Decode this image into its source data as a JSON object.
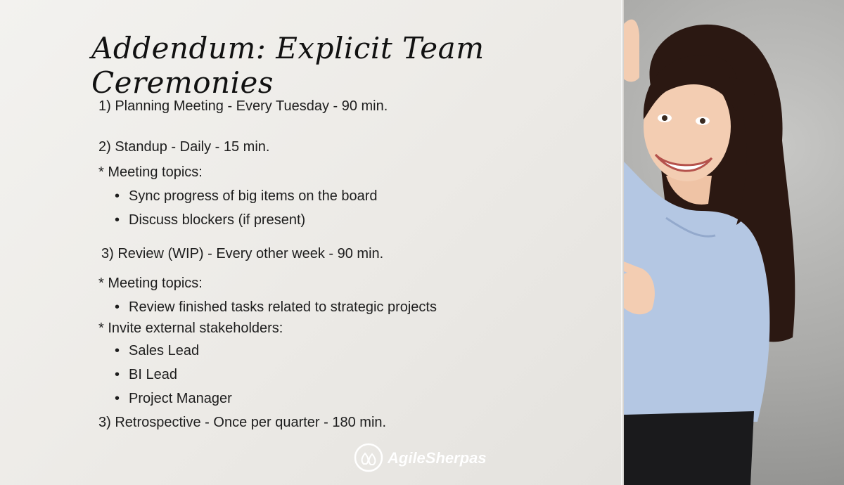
{
  "title": "Addendum: Explicit Team Ceremonies",
  "ceremonies": {
    "planning": "1) Planning Meeting - Every Tuesday - 90 min.",
    "standup": "2) Standup - Daily - 15 min.",
    "standup_topics_label": "* Meeting topics:",
    "standup_topics": [
      "Sync progress of big items on the board",
      "Discuss blockers (if present)"
    ],
    "review": "3) Review (WIP) - Every other week - 90 min.",
    "review_topics_label": "* Meeting topics:",
    "review_topics": [
      "Review finished tasks related to strategic projects"
    ],
    "stakeholders_label": "* Invite external stakeholders:",
    "stakeholders": [
      "Sales Lead",
      "BI Lead",
      "Project Manager"
    ],
    "retro": "3) Retrospective - Once per quarter - 180 min."
  },
  "brand": {
    "name": "AgileSherpas",
    "icon": "drops-logo-icon"
  },
  "photo": {
    "icon": "woman-pointing-illustration"
  },
  "colors": {
    "board": "#efeeeb",
    "text": "#1d1d1d",
    "wall": "#a9a9a7",
    "shirt": "#b4c7e3",
    "hair": "#2b1812"
  }
}
